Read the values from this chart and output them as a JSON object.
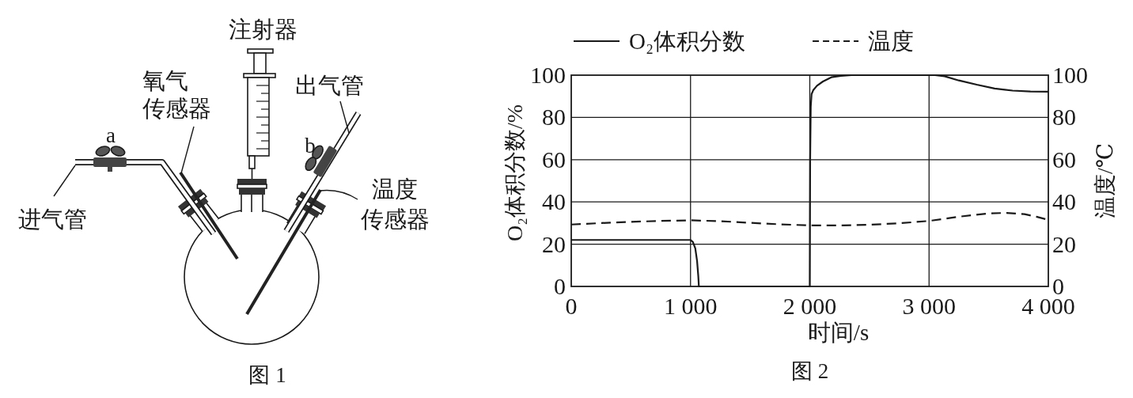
{
  "chart_data": [
    {
      "type": "other",
      "title": "图 1",
      "annotations": [
        "注射器",
        "氧气传感器",
        "a",
        "进气管",
        "b",
        "出气管",
        "温度传感器"
      ]
    },
    {
      "type": "line",
      "title": "图 2",
      "xlabel": "时间/s",
      "ylabel": "O₂体积分数/%",
      "y2label": "温度/℃",
      "xlim": [
        0,
        4000
      ],
      "xticks": [
        0,
        {
          "value": 1000,
          "label": "1 000"
        },
        {
          "value": 2000,
          "label": "2 000"
        },
        {
          "value": 3000,
          "label": "3 000"
        },
        {
          "value": 4000,
          "label": "4 000"
        }
      ],
      "ylim": [
        0,
        100
      ],
      "yticks": [
        0,
        20,
        40,
        60,
        80,
        100
      ],
      "y2lim": [
        0,
        100
      ],
      "y2ticks": [
        0,
        20,
        40,
        60,
        80,
        100
      ],
      "grid": true,
      "legend": "top",
      "series": [
        {
          "name": "O₂体积分数",
          "color": "#1a1a1a",
          "line_style": "solid",
          "x": [
            0,
            1000,
            1020,
            1040,
            1055,
            1065,
            1070,
            1990,
            2000,
            2003,
            2008,
            2015,
            2030,
            2060,
            2110,
            2180,
            2260,
            2350,
            3050,
            3130,
            3250,
            3400,
            3550,
            3700,
            3850,
            4000
          ],
          "values": [
            22,
            22,
            21,
            18,
            12,
            5,
            0,
            0,
            0,
            60,
            85,
            91,
            93,
            95,
            97,
            99,
            99.7,
            100,
            100,
            99.5,
            97.5,
            95.5,
            93.7,
            92.7,
            92.3,
            92.2
          ]
        },
        {
          "name": "温度",
          "color": "#1a1a1a",
          "line_style": "dashed",
          "x": [
            0,
            250,
            500,
            750,
            1000,
            1250,
            1500,
            1750,
            2000,
            2250,
            2500,
            2750,
            3000,
            3250,
            3500,
            3650,
            3800,
            3900,
            4000
          ],
          "values": [
            29.3,
            30.0,
            30.6,
            31.0,
            31.3,
            30.9,
            30.1,
            29.4,
            28.9,
            28.9,
            29.2,
            29.9,
            31.0,
            33.0,
            34.6,
            34.8,
            34.2,
            33.0,
            31.5
          ]
        }
      ]
    }
  ]
}
